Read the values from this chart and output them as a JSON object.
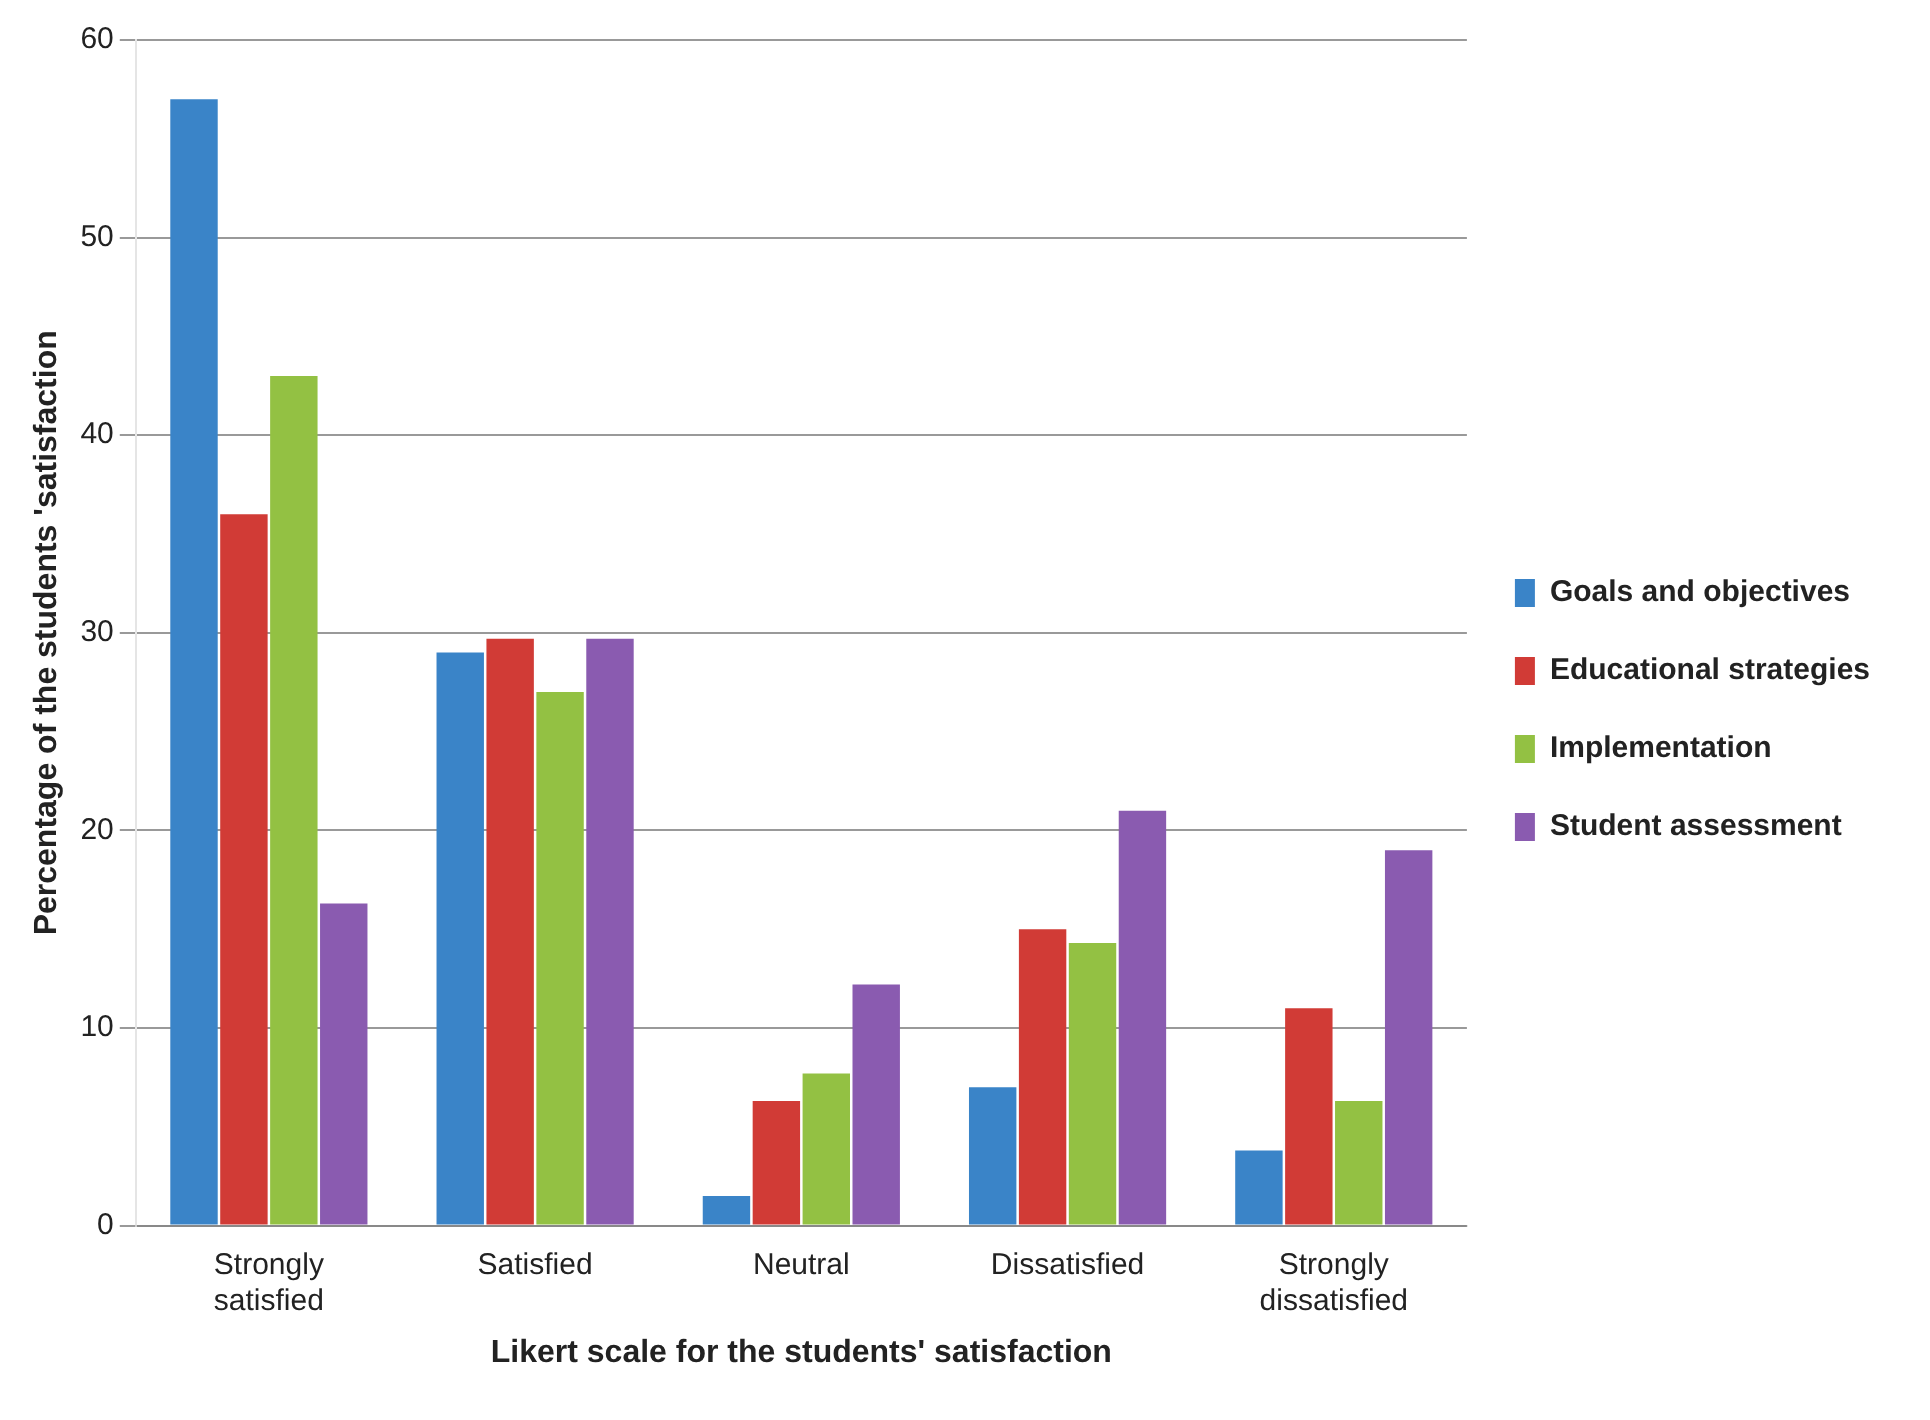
{
  "chart_data": {
    "type": "bar",
    "xlabel": "Likert scale for the students' satisfaction",
    "ylabel": "Percentage of the students 'satisfaction",
    "categories": [
      "Strongly satisfied",
      "Satisfied",
      "Neutral",
      "Dissatisfied",
      "Strongly dissatisfied"
    ],
    "series": [
      {
        "name": "Goals and objectives",
        "color": "#3a84c8",
        "values": [
          57,
          29,
          1.5,
          7,
          3.8
        ]
      },
      {
        "name": "Educational strategies",
        "color": "#d13b36",
        "values": [
          36,
          29.7,
          6.3,
          15,
          11
        ]
      },
      {
        "name": "Implementation",
        "color": "#93c143",
        "values": [
          43,
          27,
          7.7,
          14.3,
          6.3
        ]
      },
      {
        "name": "Student assessment",
        "color": "#8a5bb0",
        "values": [
          16.3,
          29.7,
          12.2,
          21,
          19
        ]
      }
    ],
    "ylim": [
      0,
      60
    ],
    "yticks": [
      0,
      10,
      20,
      30,
      40,
      50,
      60
    ],
    "grid": "y",
    "legend": "right"
  }
}
